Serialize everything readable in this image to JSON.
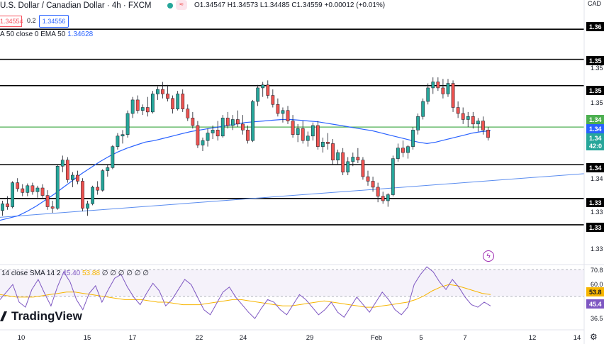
{
  "header": {
    "title": "U.S. Dollar / Canadian Dollar · 4h · FXCM",
    "status_color": "#26a69a",
    "ohlc": "O1.34547  H1.34573  L1.34485  C1.34559  +0.00012 (+0.01%)",
    "sell_price": "1.34554",
    "spread": "0.2",
    "buy_price": "1.34556",
    "ema_label": "A 50 close 0 EMA 50",
    "ema_value": "1.34628",
    "currency": "CAD"
  },
  "rsi": {
    "label": "14 close SMA 14 2",
    "value": "45.40",
    "sma_value": "53.88",
    "extra": "∅ ∅ ∅ ∅ ∅ ∅"
  },
  "brand": "TradingView",
  "price_axis": {
    "ticks": [
      "1.35",
      "1.35",
      "1.34",
      "1.34",
      "1.33",
      "1.33"
    ],
    "tags": [
      {
        "text": "1.36",
        "bg": "#000000",
        "fg": "#ffffff"
      },
      {
        "text": "1.35",
        "bg": "#000000",
        "fg": "#ffffff"
      },
      {
        "text": "1.35",
        "bg": "#000000",
        "fg": "#ffffff"
      },
      {
        "text": "1.34",
        "bg": "#4caf50",
        "fg": "#ffffff"
      },
      {
        "text": "1.34",
        "bg": "#2962ff",
        "fg": "#ffffff"
      },
      {
        "text": "1.34",
        "bg": "#26a69a",
        "fg": "#ffffff"
      },
      {
        "text": "42:0",
        "bg": "#26a69a",
        "fg": "#ffffff"
      },
      {
        "text": "1.34",
        "bg": "#000000",
        "fg": "#ffffff"
      },
      {
        "text": "1.33",
        "bg": "#000000",
        "fg": "#ffffff"
      },
      {
        "text": "1.33",
        "bg": "#000000",
        "fg": "#ffffff"
      }
    ],
    "rsi_ticks": [
      "70.8",
      "60.0",
      "36.5"
    ],
    "rsi_tags": [
      {
        "text": "53.8",
        "bg": "#f7b500",
        "fg": "#131722"
      },
      {
        "text": "45.4",
        "bg": "#7e57c2",
        "fg": "#ffffff"
      }
    ]
  },
  "time_axis": [
    "10",
    "15",
    "17",
    "22",
    "24",
    "29",
    "Feb",
    "5",
    "7",
    "12",
    "14"
  ],
  "chart_data": {
    "type": "candlestick",
    "symbol": "USDCAD",
    "timeframe": "4h",
    "colors": {
      "up": "#26a69a",
      "down": "#ef5350",
      "ema": "#2962ff",
      "rsi": "#7e57c2",
      "rsi_sma": "#f7b500"
    },
    "candles": [
      [
        1.3359,
        1.3372,
        1.3352,
        1.3368
      ],
      [
        1.3368,
        1.3378,
        1.336,
        1.3364
      ],
      [
        1.3364,
        1.3398,
        1.3362,
        1.3396
      ],
      [
        1.3396,
        1.3402,
        1.3384,
        1.3388
      ],
      [
        1.3388,
        1.3394,
        1.3378,
        1.3383
      ],
      [
        1.3383,
        1.3395,
        1.3378,
        1.3392
      ],
      [
        1.3392,
        1.3396,
        1.338,
        1.3384
      ],
      [
        1.3384,
        1.3392,
        1.3376,
        1.3389
      ],
      [
        1.3389,
        1.3394,
        1.3376,
        1.3379
      ],
      [
        1.3379,
        1.3386,
        1.336,
        1.3364
      ],
      [
        1.3364,
        1.3372,
        1.3356,
        1.3362
      ],
      [
        1.3362,
        1.342,
        1.336,
        1.3418
      ],
      [
        1.3418,
        1.3432,
        1.341,
        1.3426
      ],
      [
        1.3426,
        1.343,
        1.3396,
        1.34
      ],
      [
        1.34,
        1.341,
        1.339,
        1.3406
      ],
      [
        1.3406,
        1.3412,
        1.3394,
        1.3398
      ],
      [
        1.3398,
        1.3402,
        1.3358,
        1.3362
      ],
      [
        1.3362,
        1.3372,
        1.3352,
        1.3368
      ],
      [
        1.3368,
        1.3392,
        1.3366,
        1.339
      ],
      [
        1.339,
        1.3398,
        1.338,
        1.3386
      ],
      [
        1.3386,
        1.3414,
        1.3384,
        1.3412
      ],
      [
        1.3412,
        1.342,
        1.3404,
        1.3416
      ],
      [
        1.3416,
        1.3446,
        1.3414,
        1.3444
      ],
      [
        1.3444,
        1.3462,
        1.344,
        1.3458
      ],
      [
        1.3458,
        1.3466,
        1.3448,
        1.346
      ],
      [
        1.346,
        1.3492,
        1.3456,
        1.3488
      ],
      [
        1.3488,
        1.351,
        1.3482,
        1.3506
      ],
      [
        1.3506,
        1.3512,
        1.3488,
        1.3492
      ],
      [
        1.3492,
        1.35,
        1.3486,
        1.3496
      ],
      [
        1.3496,
        1.351,
        1.3484,
        1.349
      ],
      [
        1.349,
        1.3518,
        1.3488,
        1.3514
      ],
      [
        1.3514,
        1.3524,
        1.3506,
        1.352
      ],
      [
        1.352,
        1.353,
        1.3508,
        1.3514
      ],
      [
        1.3514,
        1.3526,
        1.3504,
        1.3508
      ],
      [
        1.3508,
        1.3512,
        1.3488,
        1.3494
      ],
      [
        1.3494,
        1.3518,
        1.3492,
        1.3514
      ],
      [
        1.3514,
        1.352,
        1.349,
        1.3494
      ],
      [
        1.3494,
        1.35,
        1.3478,
        1.3482
      ],
      [
        1.3482,
        1.349,
        1.3468,
        1.3472
      ],
      [
        1.3472,
        1.3478,
        1.3442,
        1.3446
      ],
      [
        1.3446,
        1.3456,
        1.3438,
        1.3452
      ],
      [
        1.3452,
        1.3468,
        1.3444,
        1.3462
      ],
      [
        1.3462,
        1.3472,
        1.3454,
        1.3466
      ],
      [
        1.3466,
        1.3478,
        1.3452,
        1.3458
      ],
      [
        1.3458,
        1.3486,
        1.3456,
        1.3482
      ],
      [
        1.3482,
        1.349,
        1.3468,
        1.3472
      ],
      [
        1.3472,
        1.3486,
        1.3466,
        1.348
      ],
      [
        1.348,
        1.3492,
        1.347,
        1.3474
      ],
      [
        1.3474,
        1.3486,
        1.346,
        1.3466
      ],
      [
        1.3466,
        1.3472,
        1.3448,
        1.3452
      ],
      [
        1.3452,
        1.3506,
        1.345,
        1.3504
      ],
      [
        1.3504,
        1.3526,
        1.3498,
        1.3522
      ],
      [
        1.3522,
        1.353,
        1.351,
        1.3526
      ],
      [
        1.3526,
        1.3532,
        1.3508,
        1.3512
      ],
      [
        1.3512,
        1.352,
        1.3496,
        1.35
      ],
      [
        1.35,
        1.3508,
        1.3484,
        1.3488
      ],
      [
        1.3488,
        1.3496,
        1.3476,
        1.3492
      ],
      [
        1.3492,
        1.3498,
        1.3474,
        1.3478
      ],
      [
        1.3478,
        1.3486,
        1.3456,
        1.346
      ],
      [
        1.346,
        1.3474,
        1.345,
        1.3468
      ],
      [
        1.3468,
        1.3478,
        1.3448,
        1.3452
      ],
      [
        1.3452,
        1.3464,
        1.3444,
        1.3458
      ],
      [
        1.3458,
        1.3476,
        1.3452,
        1.3472
      ],
      [
        1.3472,
        1.3478,
        1.344,
        1.3444
      ],
      [
        1.3444,
        1.3456,
        1.3436,
        1.345
      ],
      [
        1.345,
        1.3462,
        1.344,
        1.3448
      ],
      [
        1.3448,
        1.3454,
        1.342,
        1.3426
      ],
      [
        1.3426,
        1.344,
        1.342,
        1.3436
      ],
      [
        1.3436,
        1.3442,
        1.3406,
        1.341
      ],
      [
        1.341,
        1.343,
        1.3406,
        1.3424
      ],
      [
        1.3424,
        1.3436,
        1.3418,
        1.343
      ],
      [
        1.343,
        1.3442,
        1.3422,
        1.3426
      ],
      [
        1.3426,
        1.343,
        1.34,
        1.3404
      ],
      [
        1.3404,
        1.3412,
        1.3392,
        1.3398
      ],
      [
        1.3398,
        1.3404,
        1.3384,
        1.339
      ],
      [
        1.339,
        1.3396,
        1.337,
        1.3378
      ],
      [
        1.3378,
        1.3384,
        1.3368,
        1.3372
      ],
      [
        1.3372,
        1.3382,
        1.3364,
        1.338
      ],
      [
        1.338,
        1.3432,
        1.3378,
        1.3428
      ],
      [
        1.3428,
        1.3448,
        1.3424,
        1.3442
      ],
      [
        1.3442,
        1.3452,
        1.343,
        1.3436
      ],
      [
        1.3436,
        1.3446,
        1.3428,
        1.3444
      ],
      [
        1.3444,
        1.347,
        1.344,
        1.3466
      ],
      [
        1.3466,
        1.3488,
        1.346,
        1.3484
      ],
      [
        1.3484,
        1.3508,
        1.348,
        1.3504
      ],
      [
        1.3504,
        1.3528,
        1.35,
        1.3522
      ],
      [
        1.3522,
        1.3536,
        1.3514,
        1.353
      ],
      [
        1.353,
        1.3536,
        1.3518,
        1.3522
      ],
      [
        1.3522,
        1.3534,
        1.3508,
        1.3514
      ],
      [
        1.3514,
        1.3534,
        1.351,
        1.3528
      ],
      [
        1.3528,
        1.3532,
        1.349,
        1.3496
      ],
      [
        1.3496,
        1.3504,
        1.3482,
        1.3488
      ],
      [
        1.3488,
        1.3496,
        1.3474,
        1.348
      ],
      [
        1.348,
        1.349,
        1.347,
        1.3484
      ],
      [
        1.3484,
        1.349,
        1.3468,
        1.3474
      ],
      [
        1.3474,
        1.3482,
        1.3464,
        1.3478
      ],
      [
        1.3478,
        1.3484,
        1.346,
        1.3466
      ],
      [
        1.3466,
        1.347,
        1.3452,
        1.3456
      ]
    ],
    "ema50": [
      1.3346,
      1.3349,
      1.3352,
      1.3358,
      1.3365,
      1.3373,
      1.3381,
      1.339,
      1.3399,
      1.3408,
      1.3416,
      1.3424,
      1.3431,
      1.3437,
      1.3442,
      1.3446,
      1.345,
      1.3452,
      1.3455,
      1.3458,
      1.3461,
      1.3464,
      1.3466,
      1.3468,
      1.347,
      1.3472,
      1.3474,
      1.3476,
      1.3477,
      1.3478,
      1.3479,
      1.348,
      1.348,
      1.3479,
      1.3478,
      1.3477,
      1.3475,
      1.3473,
      1.3471,
      1.3469,
      1.3467,
      1.3465,
      1.3462,
      1.3459,
      1.3456,
      1.3453,
      1.345,
      1.3448,
      1.345,
      1.3453,
      1.3456,
      1.3459,
      1.3462,
      1.3464,
      1.3465
    ],
    "horizontal_levels": [
      1.36,
      1.356,
      1.3525,
      1.347,
      1.342,
      1.3375,
      1.334
    ],
    "trendline": [
      [
        0,
        1.335
      ],
      [
        1,
        1.3408
      ]
    ],
    "rsi": [
      50,
      56,
      62,
      48,
      44,
      58,
      66,
      55,
      45,
      60,
      72,
      64,
      50,
      42,
      55,
      61,
      48,
      58,
      67,
      70,
      60,
      52,
      46,
      55,
      63,
      57,
      45,
      50,
      58,
      66,
      62,
      52,
      42,
      38,
      47,
      56,
      60,
      52,
      46,
      40,
      35,
      43,
      50,
      48,
      42,
      38,
      46,
      54,
      50,
      44,
      38,
      42,
      48,
      40,
      36,
      44,
      52,
      46,
      40,
      48,
      56,
      50,
      42,
      38,
      44,
      62,
      70,
      76,
      72,
      64,
      58,
      66,
      60,
      52,
      46,
      44,
      48,
      45
    ],
    "rsi_sma": [
      54,
      53,
      52,
      52,
      52,
      53,
      54,
      55,
      56,
      56,
      55,
      54,
      53,
      52,
      51,
      50,
      50,
      50,
      49,
      48,
      48,
      47,
      46,
      46,
      46,
      47,
      48,
      49,
      50,
      50,
      49,
      48,
      47,
      46,
      45,
      45,
      46,
      47,
      48,
      49,
      48,
      47,
      46,
      45,
      44,
      44,
      45,
      46,
      47,
      48,
      50,
      53,
      57,
      60,
      62,
      61,
      59,
      57,
      55,
      54
    ],
    "rsi_range": [
      30,
      75
    ],
    "price_range": [
      1.329,
      1.362
    ]
  }
}
